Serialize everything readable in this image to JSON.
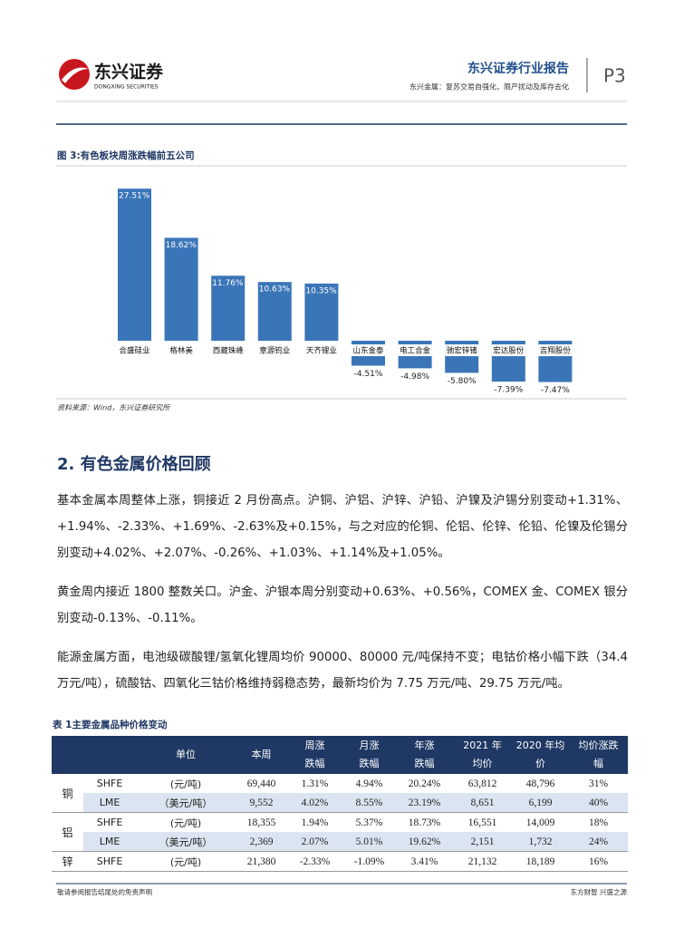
{
  "header": {
    "logo_name": "东兴证券",
    "logo_en": "DONGXING SECURITIES",
    "report_type": "东兴证券行业报告",
    "subtitle": "东兴金属：复苏交易自强化，限产扰动及库存去化",
    "page": "P3"
  },
  "figure": {
    "title": "图 3:有色板块周涨跌幅前五公司",
    "categories": [
      "合盛硅业",
      "格林美",
      "西藏珠峰",
      "章源钨业",
      "天齐锂业",
      "山东金泰",
      "电工合金",
      "驰宏锌锗",
      "宏达股份",
      "吉翔股份"
    ],
    "values": [
      27.51,
      18.62,
      11.76,
      10.63,
      10.35,
      -4.51,
      -4.98,
      -5.8,
      -7.39,
      -7.47
    ],
    "value_labels": [
      "27.51%",
      "18.62%",
      "11.76%",
      "10.63%",
      "10.35%",
      "-4.51%",
      "-4.98%",
      "-5.80%",
      "-7.39%",
      "-7.47%"
    ],
    "color": "#3a75b8",
    "source": "资料来源：Wind，东兴证券研究所"
  },
  "section": {
    "heading": "2. 有色金属价格回顾",
    "paragraphs": [
      "基本金属本周整体上涨，铜接近 2 月份高点。沪铜、沪铝、沪锌、沪铅、沪镍及沪锡分别变动+1.31%、+1.94%、-2.33%、+1.69%、-2.63%及+0.15%，与之对应的伦铜、伦铝、伦锌、伦铅、伦镍及伦锡分别变动+4.02%、+2.07%、-0.26%、+1.03%、+1.14%及+1.05%。",
      "黄金周内接近 1800 整数关口。沪金、沪银本周分别变动+0.63%、+0.56%，COMEX 金、COMEX 银分别变动-0.13%、-0.11%。",
      "能源金属方面，电池级碳酸锂/氢氧化锂周均价 90000、80000 元/吨保持不变；电钴价格小幅下跌（34.4 万元/吨），硫酸钴、四氧化三钴价格维持弱稳态势，最新均价为 7.75 万元/吨、29.75 万元/吨。"
    ]
  },
  "table": {
    "title": "表 1主要金属品种价格变动",
    "header": [
      [
        "单位"
      ],
      [
        "本周"
      ],
      [
        "周涨",
        "跌幅"
      ],
      [
        "月涨",
        "跌幅"
      ],
      [
        "年涨",
        "跌幅"
      ],
      [
        "2021 年",
        "均价"
      ],
      [
        "2020 年均",
        "价"
      ],
      [
        "均价涨跌",
        "幅"
      ]
    ],
    "groups": [
      {
        "metal": "铜",
        "rows": [
          [
            "SHFE",
            "(元/吨)",
            "69,440",
            "1.31%",
            "4.94%",
            "20.24%",
            "63,812",
            "48,796",
            "31%"
          ],
          [
            "LME",
            "（美元/吨）",
            "9,552",
            "4.02%",
            "8.55%",
            "23.19%",
            "8,651",
            "6,199",
            "40%"
          ]
        ]
      },
      {
        "metal": "铝",
        "rows": [
          [
            "SHFE",
            "(元/吨)",
            "18,355",
            "1.94%",
            "5.37%",
            "18.73%",
            "16,551",
            "14,009",
            "18%"
          ],
          [
            "LME",
            "（美元/吨）",
            "2,369",
            "2.07%",
            "5.01%",
            "19.62%",
            "2,151",
            "1,732",
            "24%"
          ]
        ]
      },
      {
        "metal": "锌",
        "rows": [
          [
            "SHFE",
            "(元/吨)",
            "21,380",
            "-2.33%",
            "-1.09%",
            "3.41%",
            "21,132",
            "18,189",
            "16%"
          ]
        ]
      }
    ]
  },
  "footer": {
    "disclaimer": "敬请参阅报告结尾处的免责声明",
    "slogan": "东方财智 兴盛之源"
  }
}
